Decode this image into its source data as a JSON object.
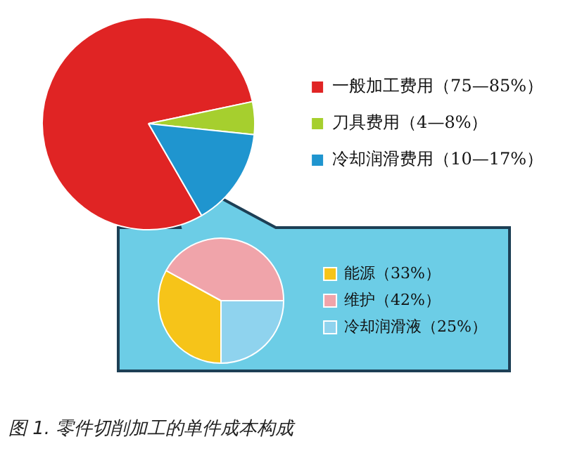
{
  "chart_data": [
    {
      "type": "pie",
      "categories": [
        "一般加工费用（75—85%）",
        "刀具费用（4—8%）",
        "冷却润滑费用（10—17%）"
      ],
      "values": [
        80,
        5,
        15
      ],
      "colors": [
        "#e02424",
        "#a6cf2e",
        "#1f95cf"
      ],
      "legend": "right",
      "annotations": [
        "图 1. 零件切削加工的单件成本构成"
      ]
    },
    {
      "type": "pie",
      "categories": [
        "能源（33%）",
        "维护（42%）",
        "冷却润滑液（25%）"
      ],
      "values": [
        33,
        42,
        25
      ],
      "colors": [
        "#f6c419",
        "#f0a4aa",
        "#8fd3ee"
      ],
      "legend": "right"
    }
  ]
}
